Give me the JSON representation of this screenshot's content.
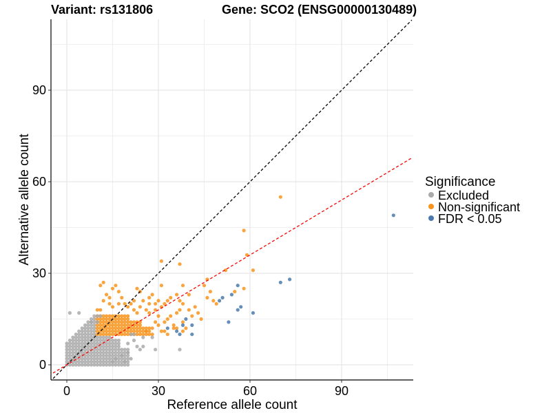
{
  "chart_data": {
    "type": "scatter",
    "title_left": "Variant: rs131806",
    "title_right": "Gene: SCO2 (ENSG00000130489)",
    "xlabel": "Reference allele count",
    "ylabel": "Alternative allele count",
    "xlim": [
      -4.5,
      113
    ],
    "ylim": [
      -4.5,
      113
    ],
    "xticks": [
      0,
      30,
      60,
      90
    ],
    "yticks": [
      0,
      30,
      60,
      90
    ],
    "grid": true,
    "reference_lines": [
      {
        "name": "identity",
        "slope": 1,
        "intercept": 0,
        "color": "#000000",
        "style": "dashed"
      },
      {
        "name": "fit",
        "slope": 0.6,
        "intercept": 0,
        "color": "#ff0000",
        "style": "dashed"
      }
    ],
    "legend": {
      "title": "Significance",
      "position": "right",
      "entries": [
        {
          "label": "Excluded",
          "color": "#aaaaaa"
        },
        {
          "label": "Non-significant",
          "color": "#f7941d"
        },
        {
          "label": "FDR < 0.05",
          "color": "#4a7aab"
        }
      ]
    },
    "dense_regions": [
      {
        "series": "Excluded",
        "x_range": [
          0,
          20
        ],
        "y_range": [
          0,
          16
        ],
        "rule": "x<10 or y<10",
        "extra_cap": "y <= x + 7"
      },
      {
        "series": "Non-significant",
        "x_range": [
          10,
          27
        ],
        "y_range": [
          10,
          16
        ],
        "rule": "x>=10 and y>=10"
      }
    ],
    "series": [
      {
        "name": "Excluded",
        "color": "#aaaaaa",
        "points": [
          [
            1,
            17
          ],
          [
            4,
            17
          ],
          [
            10,
            14
          ],
          [
            8,
            14
          ],
          [
            10,
            16
          ],
          [
            11,
            16
          ],
          [
            21,
            10
          ],
          [
            22,
            10
          ],
          [
            25,
            6
          ],
          [
            24,
            5
          ],
          [
            23,
            6
          ],
          [
            28,
            9
          ],
          [
            29,
            5
          ],
          [
            37,
            5
          ],
          [
            18,
            3
          ],
          [
            20,
            4
          ],
          [
            15,
            1
          ],
          [
            16,
            2
          ],
          [
            19,
            1
          ],
          [
            21,
            2
          ],
          [
            20,
            7
          ],
          [
            22,
            8
          ],
          [
            25,
            9
          ]
        ]
      },
      {
        "name": "Non-significant",
        "color": "#f7941d",
        "points": [
          [
            70,
            55
          ],
          [
            58,
            44
          ],
          [
            59,
            36
          ],
          [
            61,
            31
          ],
          [
            31,
            34
          ],
          [
            37,
            33
          ],
          [
            52,
            31
          ],
          [
            46,
            28
          ],
          [
            45,
            26
          ],
          [
            31,
            26
          ],
          [
            33,
            21
          ],
          [
            34,
            22
          ],
          [
            30,
            21
          ],
          [
            38,
            26
          ],
          [
            40,
            23
          ],
          [
            25,
            21
          ],
          [
            27,
            22
          ],
          [
            28,
            23
          ],
          [
            23,
            25
          ],
          [
            24,
            24
          ],
          [
            22,
            21
          ],
          [
            21,
            20
          ],
          [
            19,
            20
          ],
          [
            20,
            19
          ],
          [
            15,
            19
          ],
          [
            14,
            20
          ],
          [
            12,
            21
          ],
          [
            11,
            18
          ],
          [
            14,
            22
          ],
          [
            13,
            23
          ],
          [
            15,
            25
          ],
          [
            16,
            26
          ],
          [
            17,
            24
          ],
          [
            11,
            26
          ],
          [
            12,
            27
          ],
          [
            18,
            22
          ],
          [
            17,
            20
          ],
          [
            10,
            18
          ],
          [
            26,
            18
          ],
          [
            27,
            17
          ],
          [
            29,
            14
          ],
          [
            30,
            13
          ],
          [
            32,
            14
          ],
          [
            33,
            15
          ],
          [
            34,
            16
          ],
          [
            35,
            13
          ],
          [
            36,
            17
          ],
          [
            37,
            18
          ],
          [
            38,
            14
          ],
          [
            40,
            18
          ],
          [
            42,
            19
          ],
          [
            43,
            17
          ],
          [
            44,
            15
          ],
          [
            48,
            21
          ],
          [
            49,
            20
          ],
          [
            47,
            24
          ],
          [
            30,
            16
          ],
          [
            28,
            12
          ],
          [
            31,
            11
          ],
          [
            32,
            11
          ],
          [
            33,
            10
          ],
          [
            35,
            12
          ],
          [
            28,
            10
          ],
          [
            26,
            11
          ],
          [
            29,
            18
          ],
          [
            24,
            19
          ],
          [
            23,
            17
          ],
          [
            22,
            18
          ],
          [
            36,
            12
          ],
          [
            39,
            12
          ],
          [
            38,
            11
          ],
          [
            41,
            16
          ],
          [
            31,
            19
          ],
          [
            32,
            20
          ],
          [
            46,
            22
          ],
          [
            55,
            24
          ],
          [
            58,
            25
          ],
          [
            36,
            23
          ],
          [
            37,
            21
          ],
          [
            38,
            20
          ],
          [
            27,
            20
          ],
          [
            29,
            20
          ]
        ]
      },
      {
        "name": "FDR < 0.05",
        "color": "#4a7aab",
        "points": [
          [
            107,
            49
          ],
          [
            73,
            28
          ],
          [
            70,
            27
          ],
          [
            56,
            26
          ],
          [
            51,
            22
          ],
          [
            50,
            21
          ],
          [
            54,
            23
          ],
          [
            57,
            19
          ],
          [
            56,
            18
          ],
          [
            61,
            17
          ],
          [
            53,
            14
          ],
          [
            39,
            15
          ],
          [
            41,
            13
          ],
          [
            33,
            12
          ],
          [
            36,
            11
          ],
          [
            37,
            10
          ],
          [
            41,
            10
          ],
          [
            38,
            13
          ]
        ]
      }
    ]
  }
}
